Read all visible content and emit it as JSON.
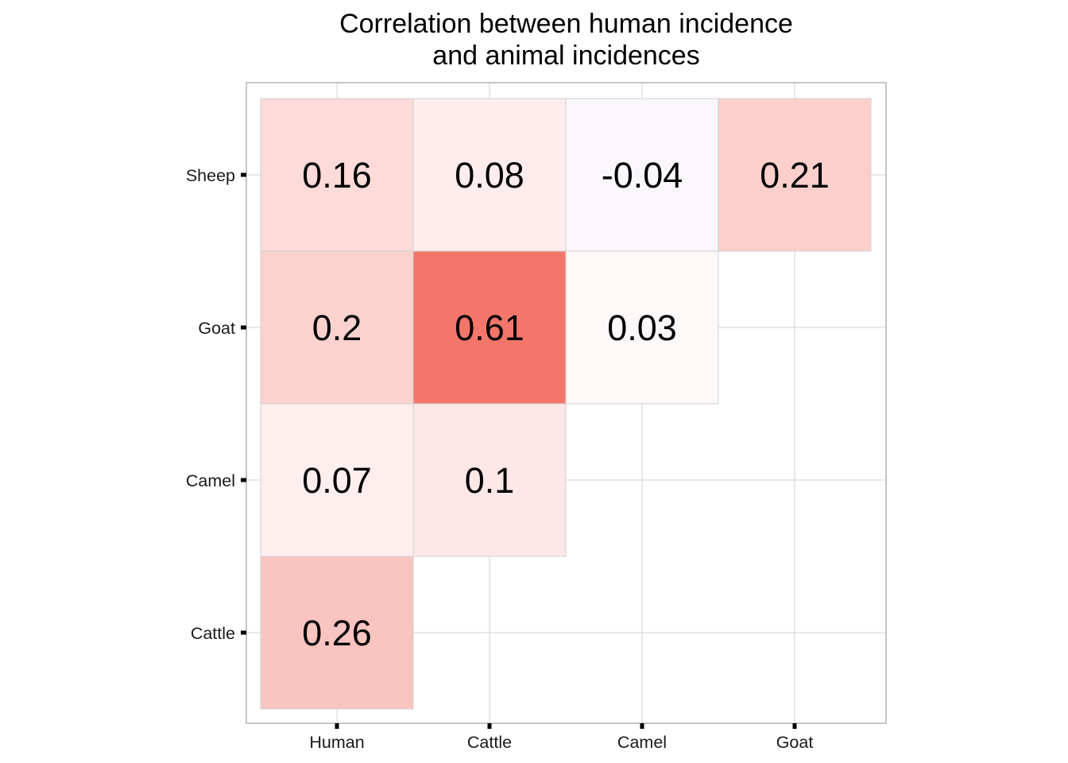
{
  "chart_data": {
    "type": "heatmap",
    "title_lines": [
      "Correlation between human incidence",
      "and animal incidences"
    ],
    "x_categories": [
      "Human",
      "Cattle",
      "Camel",
      "Goat"
    ],
    "y_categories": [
      "Cattle",
      "Camel",
      "Goat",
      "Sheep"
    ],
    "cells": [
      {
        "x": "Human",
        "y": "Cattle",
        "value": 0.26,
        "label": "0.26"
      },
      {
        "x": "Human",
        "y": "Camel",
        "value": 0.07,
        "label": "0.07"
      },
      {
        "x": "Cattle",
        "y": "Camel",
        "value": 0.1,
        "label": "0.1"
      },
      {
        "x": "Human",
        "y": "Goat",
        "value": 0.2,
        "label": "0.2"
      },
      {
        "x": "Cattle",
        "y": "Goat",
        "value": 0.61,
        "label": "0.61"
      },
      {
        "x": "Camel",
        "y": "Goat",
        "value": 0.03,
        "label": "0.03"
      },
      {
        "x": "Human",
        "y": "Sheep",
        "value": 0.16,
        "label": "0.16"
      },
      {
        "x": "Cattle",
        "y": "Sheep",
        "value": 0.08,
        "label": "0.08"
      },
      {
        "x": "Camel",
        "y": "Sheep",
        "value": -0.04,
        "label": "-0.04"
      },
      {
        "x": "Goat",
        "y": "Sheep",
        "value": 0.21,
        "label": "0.21"
      }
    ],
    "color_scale": {
      "negative": "#7b2fbe",
      "zero": "#ffffff",
      "positive": "#ef3b2c"
    },
    "grid": true,
    "legend": "none"
  }
}
